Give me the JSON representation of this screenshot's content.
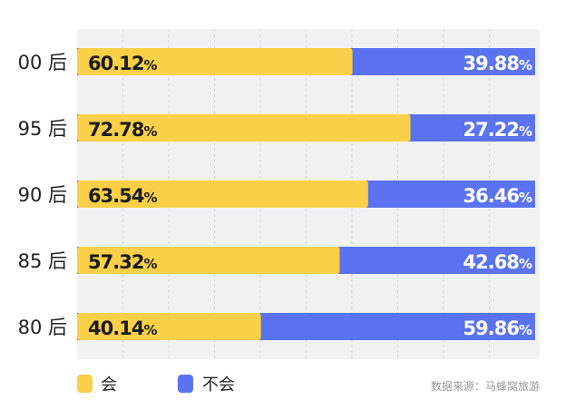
{
  "chart_data": {
    "type": "bar",
    "stacked": true,
    "orientation": "horizontal",
    "categories": [
      "00 后",
      "95 后",
      "90 后",
      "85 后",
      "80 后"
    ],
    "series": [
      {
        "name": "会",
        "color": "#f9d047",
        "values": [
          60.12,
          72.78,
          63.54,
          57.32,
          40.14
        ]
      },
      {
        "name": "不会",
        "color": "#5b73f0",
        "values": [
          39.88,
          27.22,
          36.46,
          42.68,
          59.86
        ]
      }
    ],
    "value_suffix": "%",
    "xlim": [
      0,
      100
    ],
    "grid": true,
    "legend": "bottom-left",
    "source": "数据来源：马蜂窝旅游"
  }
}
